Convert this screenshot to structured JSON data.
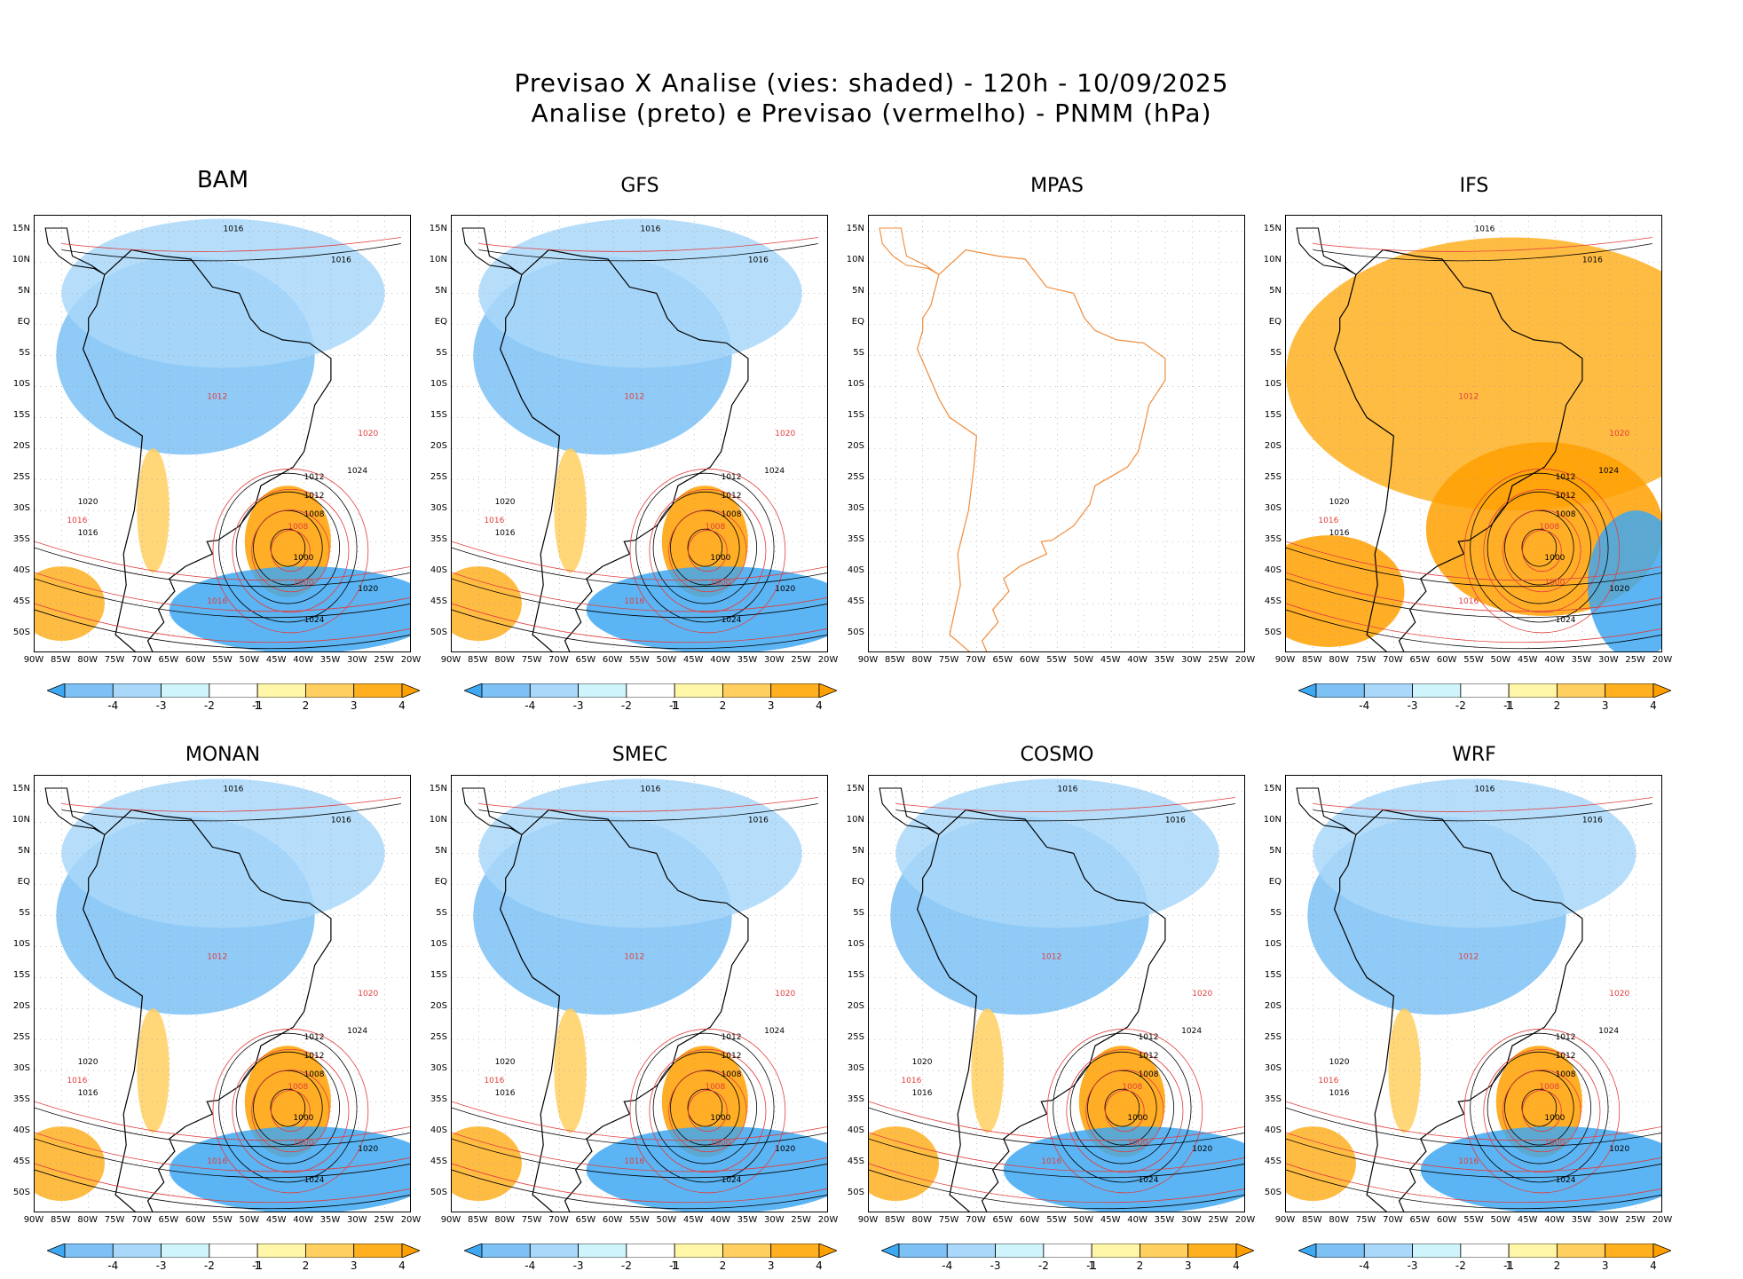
{
  "title_line1": "Previsao X Analise (vies: shaded) - 120h - 10/09/2025",
  "title_line2": "Analise (preto) e Previsao (vermelho) - PNMM (hPa)",
  "panels": [
    {
      "name": "BAM",
      "has_data": true
    },
    {
      "name": "GFS",
      "has_data": true
    },
    {
      "name": "MPAS",
      "has_data": false
    },
    {
      "name": "IFS",
      "has_data": true
    },
    {
      "name": "MONAN",
      "has_data": true
    },
    {
      "name": "SMEC",
      "has_data": true
    },
    {
      "name": "COSMO",
      "has_data": true
    },
    {
      "name": "WRF",
      "has_data": true
    }
  ],
  "lat_labels": [
    "15N",
    "10N",
    "5N",
    "EQ",
    "5S",
    "10S",
    "15S",
    "20S",
    "25S",
    "30S",
    "35S",
    "40S",
    "45S",
    "50S"
  ],
  "lon_labels": [
    "90W",
    "85W",
    "80W",
    "75W",
    "70W",
    "65W",
    "60W",
    "55W",
    "50W",
    "45W",
    "40W",
    "35W",
    "30W",
    "25W",
    "20W"
  ],
  "colorbar": {
    "labels": [
      "-4",
      "-3",
      "-2",
      "-1",
      "1",
      "2",
      "3",
      "4"
    ],
    "colors": [
      "#3ea8f2",
      "#7dc1f5",
      "#a9d8fa",
      "#d0f4fb",
      "#ffffff",
      "#fff6a8",
      "#ffd060",
      "#ffb021",
      "#ffa000"
    ]
  },
  "contour_labels": {
    "analysis": [
      "1016",
      "1016",
      "1012",
      "1020",
      "1024",
      "1012",
      "1008",
      "1000",
      "1016",
      "1020",
      "1024"
    ],
    "forecast": [
      "1016",
      "1012",
      "1008",
      "1020",
      "1016",
      "1000"
    ]
  },
  "colors": {
    "analysis_contour": "#000000",
    "forecast_contour": "#e23c3c",
    "mpas_coast": "#f08c3c",
    "grid": "#9a9a9a"
  }
}
